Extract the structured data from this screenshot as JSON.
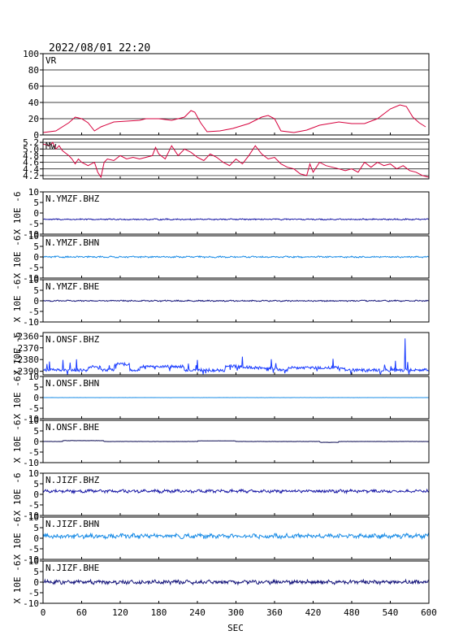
{
  "header": {
    "timestamp": "2022/08/01 22:20"
  },
  "chart_data": {
    "type": "line",
    "xlabel": "SEC",
    "x_ticks": [
      "0",
      "60",
      "120",
      "180",
      "240",
      "300",
      "360",
      "420",
      "480",
      "540",
      "600"
    ],
    "xlim": [
      0,
      600
    ],
    "panels": [
      {
        "id": "vr",
        "label": "VR",
        "ylim": [
          0,
          100
        ],
        "ticks": [
          "0",
          "20",
          "40",
          "60",
          "80",
          "100"
        ],
        "grid": true,
        "color": "#d6003c",
        "points": [
          [
            0,
            3
          ],
          [
            20,
            5
          ],
          [
            40,
            15
          ],
          [
            50,
            22
          ],
          [
            60,
            20
          ],
          [
            70,
            15
          ],
          [
            80,
            5
          ],
          [
            90,
            10
          ],
          [
            110,
            16
          ],
          [
            130,
            17
          ],
          [
            150,
            18
          ],
          [
            160,
            20
          ],
          [
            180,
            20
          ],
          [
            200,
            18
          ],
          [
            220,
            22
          ],
          [
            230,
            30
          ],
          [
            236,
            28
          ],
          [
            245,
            15
          ],
          [
            255,
            4
          ],
          [
            275,
            5
          ],
          [
            295,
            8
          ],
          [
            320,
            14
          ],
          [
            340,
            22
          ],
          [
            350,
            24
          ],
          [
            360,
            20
          ],
          [
            370,
            5
          ],
          [
            390,
            3
          ],
          [
            410,
            6
          ],
          [
            430,
            12
          ],
          [
            460,
            16
          ],
          [
            480,
            14
          ],
          [
            500,
            14
          ],
          [
            520,
            20
          ],
          [
            540,
            32
          ],
          [
            555,
            37
          ],
          [
            565,
            35
          ],
          [
            575,
            22
          ],
          [
            585,
            15
          ],
          [
            595,
            10
          ]
        ]
      },
      {
        "id": "mw",
        "label": "Mw",
        "ylim": [
          4.1,
          5.3
        ],
        "ticks": [
          "4.2",
          "4.4",
          "4.6",
          "4.8",
          "5.0",
          "5.2"
        ],
        "grid": true,
        "color": "#d6003c",
        "points": [
          [
            0,
            5.15
          ],
          [
            10,
            5.1
          ],
          [
            15,
            5.2
          ],
          [
            20,
            5.0
          ],
          [
            25,
            5.1
          ],
          [
            30,
            4.95
          ],
          [
            40,
            4.8
          ],
          [
            45,
            4.7
          ],
          [
            50,
            4.55
          ],
          [
            55,
            4.7
          ],
          [
            60,
            4.6
          ],
          [
            70,
            4.5
          ],
          [
            80,
            4.6
          ],
          [
            85,
            4.3
          ],
          [
            90,
            4.15
          ],
          [
            95,
            4.6
          ],
          [
            100,
            4.7
          ],
          [
            110,
            4.65
          ],
          [
            120,
            4.8
          ],
          [
            130,
            4.7
          ],
          [
            140,
            4.75
          ],
          [
            150,
            4.7
          ],
          [
            160,
            4.75
          ],
          [
            170,
            4.8
          ],
          [
            175,
            5.05
          ],
          [
            180,
            4.85
          ],
          [
            190,
            4.7
          ],
          [
            200,
            5.1
          ],
          [
            210,
            4.8
          ],
          [
            220,
            5.0
          ],
          [
            230,
            4.9
          ],
          [
            240,
            4.75
          ],
          [
            250,
            4.65
          ],
          [
            260,
            4.85
          ],
          [
            270,
            4.75
          ],
          [
            280,
            4.6
          ],
          [
            290,
            4.5
          ],
          [
            300,
            4.7
          ],
          [
            310,
            4.55
          ],
          [
            320,
            4.8
          ],
          [
            330,
            5.1
          ],
          [
            340,
            4.85
          ],
          [
            350,
            4.7
          ],
          [
            360,
            4.75
          ],
          [
            370,
            4.55
          ],
          [
            380,
            4.45
          ],
          [
            390,
            4.4
          ],
          [
            400,
            4.25
          ],
          [
            410,
            4.2
          ],
          [
            415,
            4.55
          ],
          [
            420,
            4.3
          ],
          [
            430,
            4.6
          ],
          [
            440,
            4.5
          ],
          [
            450,
            4.45
          ],
          [
            460,
            4.4
          ],
          [
            470,
            4.35
          ],
          [
            480,
            4.4
          ],
          [
            490,
            4.3
          ],
          [
            500,
            4.6
          ],
          [
            510,
            4.45
          ],
          [
            520,
            4.6
          ],
          [
            530,
            4.5
          ],
          [
            540,
            4.55
          ],
          [
            550,
            4.4
          ],
          [
            560,
            4.5
          ],
          [
            570,
            4.35
          ],
          [
            580,
            4.3
          ],
          [
            590,
            4.2
          ],
          [
            600,
            4.15
          ]
        ]
      },
      {
        "id": "ymzf-bhz",
        "label": "N.YMZF.BHZ",
        "ylim": [
          -10,
          10
        ],
        "ticks": [
          "-10",
          "-5",
          "0",
          "5",
          "10"
        ],
        "grid": false,
        "ylabel": "X 10E -6",
        "color": "#1a1aa6",
        "kind": "noise",
        "offset": -3,
        "amp": 0.25
      },
      {
        "id": "ymzf-bhn",
        "label": "N.YMZF.BHN",
        "ylim": [
          -10,
          10
        ],
        "ticks": [
          "-10",
          "-5",
          "0",
          "5",
          "10"
        ],
        "grid": false,
        "ylabel": "X 10E -6",
        "color": "#1a8ce6",
        "kind": "noise",
        "offset": 0,
        "amp": 0.3
      },
      {
        "id": "ymzf-bhe",
        "label": "N.YMZF.BHE",
        "ylim": [
          -10,
          10
        ],
        "ticks": [
          "-10",
          "-5",
          "0",
          "5",
          "10"
        ],
        "grid": false,
        "ylabel": "X 10E -6",
        "color": "#14147a",
        "kind": "noise",
        "offset": 0,
        "amp": 0.25
      },
      {
        "id": "onsf-bhz",
        "label": "N.ONSF.BHZ",
        "ylim": [
          -2393,
          -2357
        ],
        "ticks": [
          "-2390",
          "-2380",
          "-2370",
          "-2360"
        ],
        "grid": false,
        "ylabel": "X 10E -6",
        "color": "#1a3cff",
        "kind": "spiky",
        "offset": -2389,
        "amp": 1.2
      },
      {
        "id": "onsf-bhn",
        "label": "N.ONSF.BHN",
        "ylim": [
          -10,
          10
        ],
        "ticks": [
          "-10",
          "-5",
          "0",
          "5",
          "10"
        ],
        "grid": false,
        "ylabel": "X 10E -6",
        "color": "#1a8ce6",
        "kind": "flat",
        "offset": 0,
        "amp": 0.05
      },
      {
        "id": "onsf-bhe",
        "label": "N.ONSF.BHE",
        "ylim": [
          -10,
          10
        ],
        "ticks": [
          "-10",
          "-5",
          "0",
          "5",
          "10"
        ],
        "grid": false,
        "ylabel": "X 10E -6",
        "color": "#0a0a50",
        "kind": "bumpy",
        "offset": 0,
        "amp": 0.1
      },
      {
        "id": "jizf-bhz",
        "label": "N.JIZF.BHZ",
        "ylim": [
          -10,
          10
        ],
        "ticks": [
          "-10",
          "-5",
          "0",
          "5",
          "10"
        ],
        "grid": false,
        "ylabel": "X 10E -6",
        "color": "#1a1aa6",
        "kind": "noise",
        "offset": 1.5,
        "amp": 0.6
      },
      {
        "id": "jizf-bhn",
        "label": "N.JIZF.BHN",
        "ylim": [
          -10,
          10
        ],
        "ticks": [
          "-10",
          "-5",
          "0",
          "5",
          "10"
        ],
        "grid": false,
        "ylabel": "X 10E -6",
        "color": "#1a8ce6",
        "kind": "noise",
        "offset": 1,
        "amp": 0.9
      },
      {
        "id": "jizf-bhe",
        "label": "N.JIZF.BHE",
        "ylim": [
          -10,
          10
        ],
        "ticks": [
          "-10",
          "-5",
          "0",
          "5",
          "10"
        ],
        "grid": false,
        "ylabel": "X 10E -6",
        "color": "#14147a",
        "kind": "noise",
        "offset": 0,
        "amp": 0.8
      }
    ]
  }
}
